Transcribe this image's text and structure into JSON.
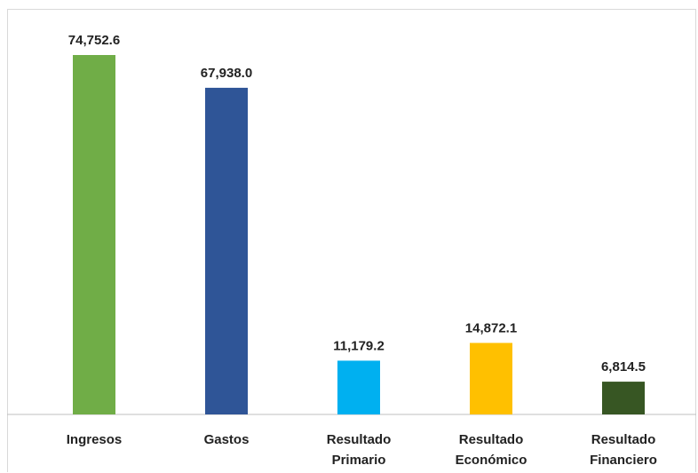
{
  "chart_data": {
    "type": "bar",
    "categories": [
      [
        "Ingresos"
      ],
      [
        "Gastos"
      ],
      [
        "Resultado",
        "Primario"
      ],
      [
        "Resultado",
        "Económico"
      ],
      [
        "Resultado",
        "Financiero"
      ]
    ],
    "values": [
      74752.6,
      67938.0,
      11179.2,
      14872.1,
      6814.5
    ],
    "value_labels": [
      "74,752.6",
      "67,938.0",
      "11,179.2",
      "14,872.1",
      "6,814.5"
    ],
    "colors": [
      "#70ad47",
      "#2f5597",
      "#00b0f0",
      "#ffc000",
      "#375623"
    ],
    "ylim": [
      0,
      74752.6
    ],
    "grid": false,
    "legend": "none"
  }
}
